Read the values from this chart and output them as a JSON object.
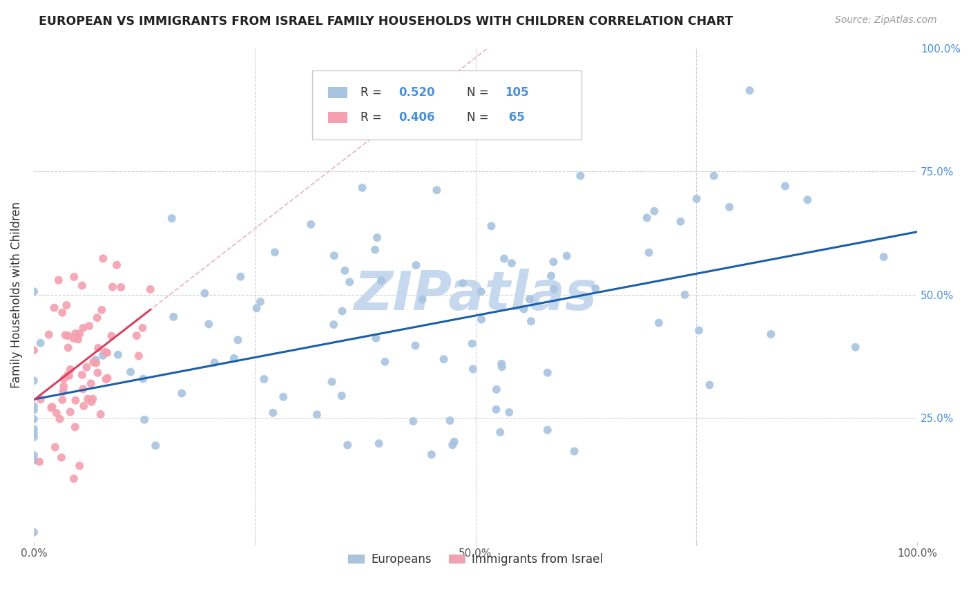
{
  "title": "EUROPEAN VS IMMIGRANTS FROM ISRAEL FAMILY HOUSEHOLDS WITH CHILDREN CORRELATION CHART",
  "source": "Source: ZipAtlas.com",
  "ylabel": "Family Households with Children",
  "xlim": [
    0,
    1.0
  ],
  "ylim": [
    0,
    1.0
  ],
  "blue_R": 0.52,
  "blue_N": 105,
  "pink_R": 0.406,
  "pink_N": 65,
  "blue_color": "#a8c4e0",
  "pink_color": "#f4a0b0",
  "blue_line_color": "#1a5fa8",
  "pink_line_color": "#d94060",
  "pink_dash_color": "#e8b8c4",
  "legend_text_color": "#4a90d9",
  "watermark": "ZIPatlas",
  "watermark_color": "#c5d8ee",
  "grid_color": "#d0d0d0",
  "title_color": "#222222",
  "label_color": "#555555",
  "tick_color": "#4a90d9",
  "bottom_legend_labels": [
    "Europeans",
    "Immigrants from Israel"
  ]
}
